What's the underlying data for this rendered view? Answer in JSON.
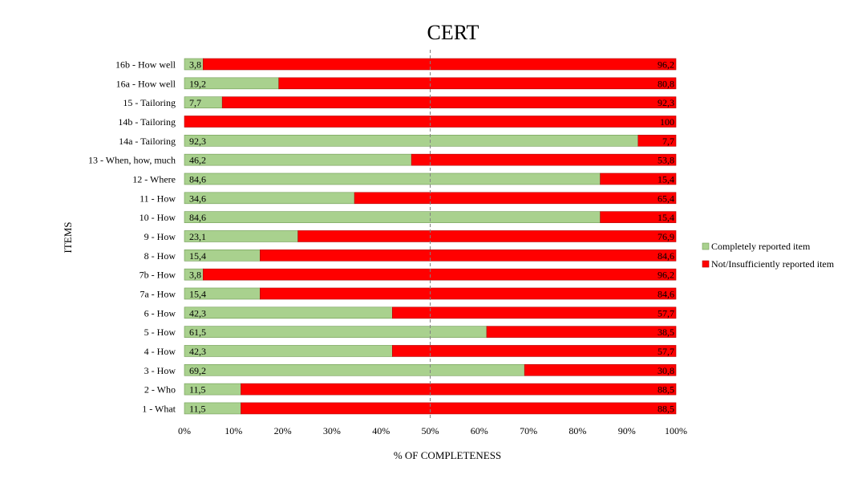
{
  "chart_data": {
    "type": "bar",
    "orientation": "horizontal",
    "stacked": true,
    "title": "CERT",
    "xlabel": "% OF COMPLETENESS",
    "ylabel": "ITEMS",
    "xlim": [
      0,
      100
    ],
    "x_ticks": [
      "0%",
      "10%",
      "20%",
      "30%",
      "40%",
      "50%",
      "60%",
      "70%",
      "80%",
      "90%",
      "100%"
    ],
    "reference_line": {
      "value": 50,
      "style": "dashed"
    },
    "grid": false,
    "legend_position": "right",
    "categories": [
      "1 - What",
      "2 - Who",
      "3 - How",
      "4 - How",
      "5 - How",
      "6 - How",
      "7a - How",
      "7b - How",
      "8 - How",
      "9 - How",
      "10 - How",
      "11 - How",
      "12 - Where",
      "13 - When, how, much",
      "14a - Tailoring",
      "14b - Tailoring",
      "15 - Tailoring",
      "16a - How well",
      "16b - How well"
    ],
    "series": [
      {
        "name": "Completely reported item",
        "color": "#a9d18e",
        "values": [
          11.5,
          11.5,
          69.2,
          42.3,
          61.5,
          42.3,
          15.4,
          3.8,
          15.4,
          23.1,
          84.6,
          34.6,
          84.6,
          46.2,
          92.3,
          0,
          7.7,
          19.2,
          3.8
        ],
        "labels": [
          "11,5",
          "11,5",
          "69,2",
          "42,3",
          "61,5",
          "42,3",
          "15,4",
          "3,8",
          "15,4",
          "23,1",
          "84,6",
          "34,6",
          "84,6",
          "46,2",
          "92,3",
          "",
          "7,7",
          "19,2",
          "3,8"
        ]
      },
      {
        "name": "Not/Insufficiently reported item",
        "color": "#ff0000",
        "values": [
          88.5,
          88.5,
          30.8,
          57.7,
          38.5,
          57.7,
          84.6,
          96.2,
          84.6,
          76.9,
          15.4,
          65.4,
          15.4,
          53.8,
          7.7,
          100,
          92.3,
          80.8,
          96.2
        ],
        "labels": [
          "88,5",
          "88,5",
          "30,8",
          "57,7",
          "38,5",
          "57,7",
          "84,6",
          "96,2",
          "84,6",
          "76,9",
          "15,4",
          "65,4",
          "15,4",
          "53,8",
          "7,7",
          "100",
          "92,3",
          "80,8",
          "96,2"
        ]
      }
    ]
  }
}
